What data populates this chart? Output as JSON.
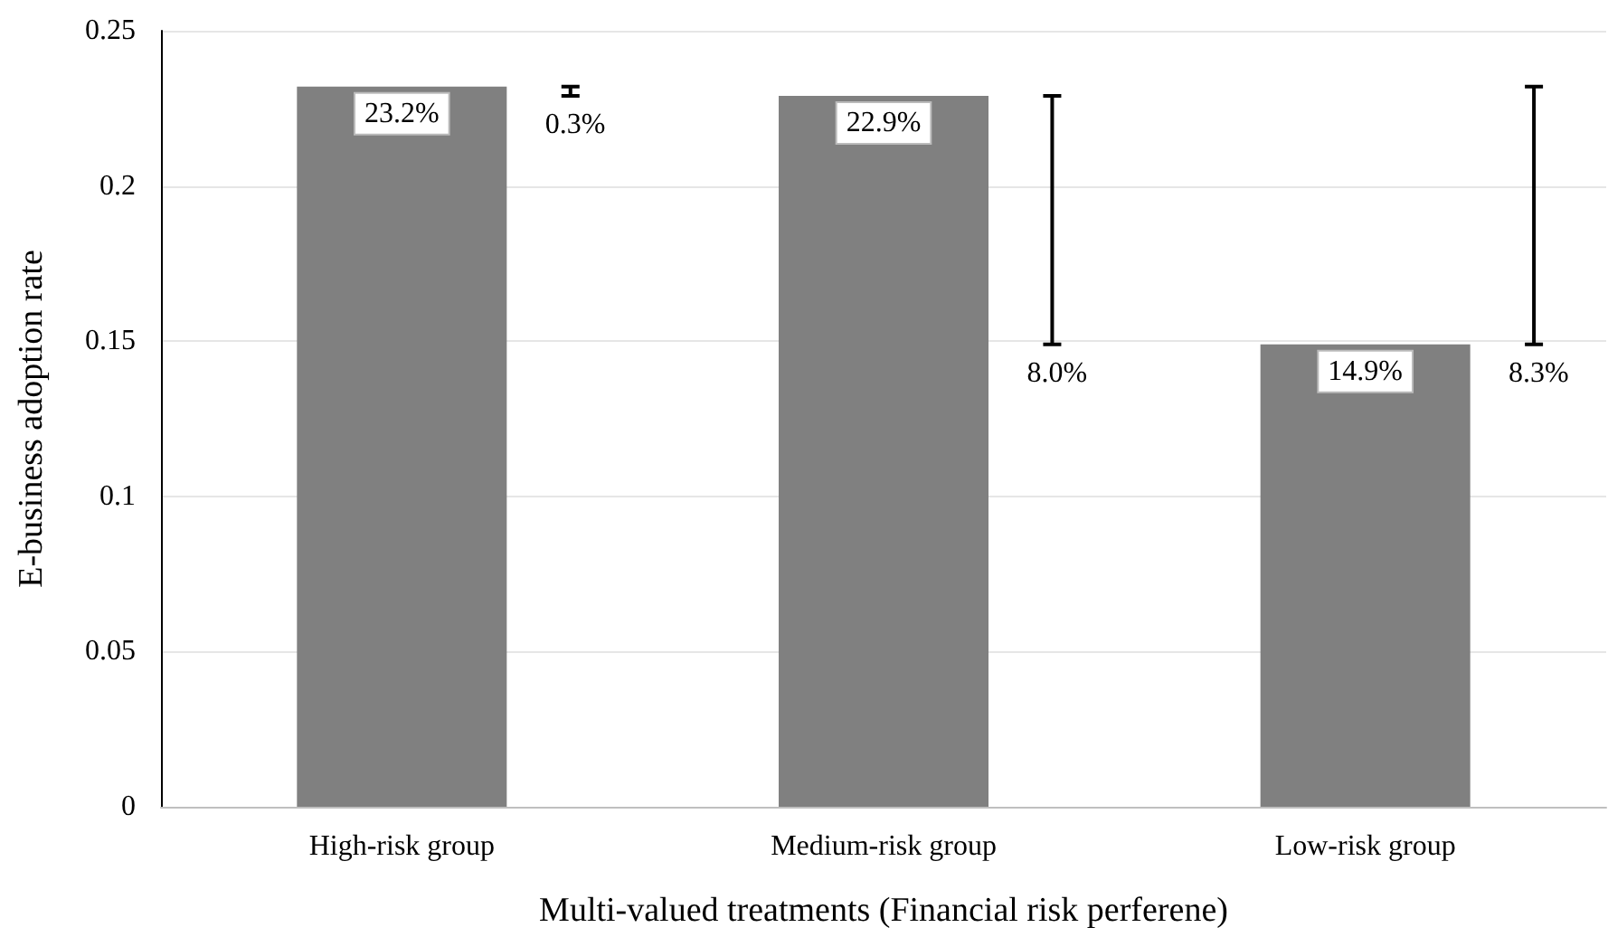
{
  "chart_data": {
    "type": "bar",
    "xlabel": "Multi-valued treatments (Financial risk perferene)",
    "ylabel": "E-business adoption rate",
    "categories": [
      "High-risk group",
      "Medium-risk group",
      "Low-risk group"
    ],
    "series": [
      {
        "color": "#808080",
        "values": [
          0.232,
          0.229,
          0.149
        ],
        "value_labels": [
          "23.2%",
          "22.9%",
          "14.9%"
        ]
      }
    ],
    "annotations": [
      "0.3%",
      "8.0%",
      "8.3%"
    ],
    "ylim": [
      0,
      0.25
    ],
    "yticks": [
      0,
      0.05,
      0.1,
      0.15,
      0.2,
      0.25
    ],
    "grid": "y"
  }
}
